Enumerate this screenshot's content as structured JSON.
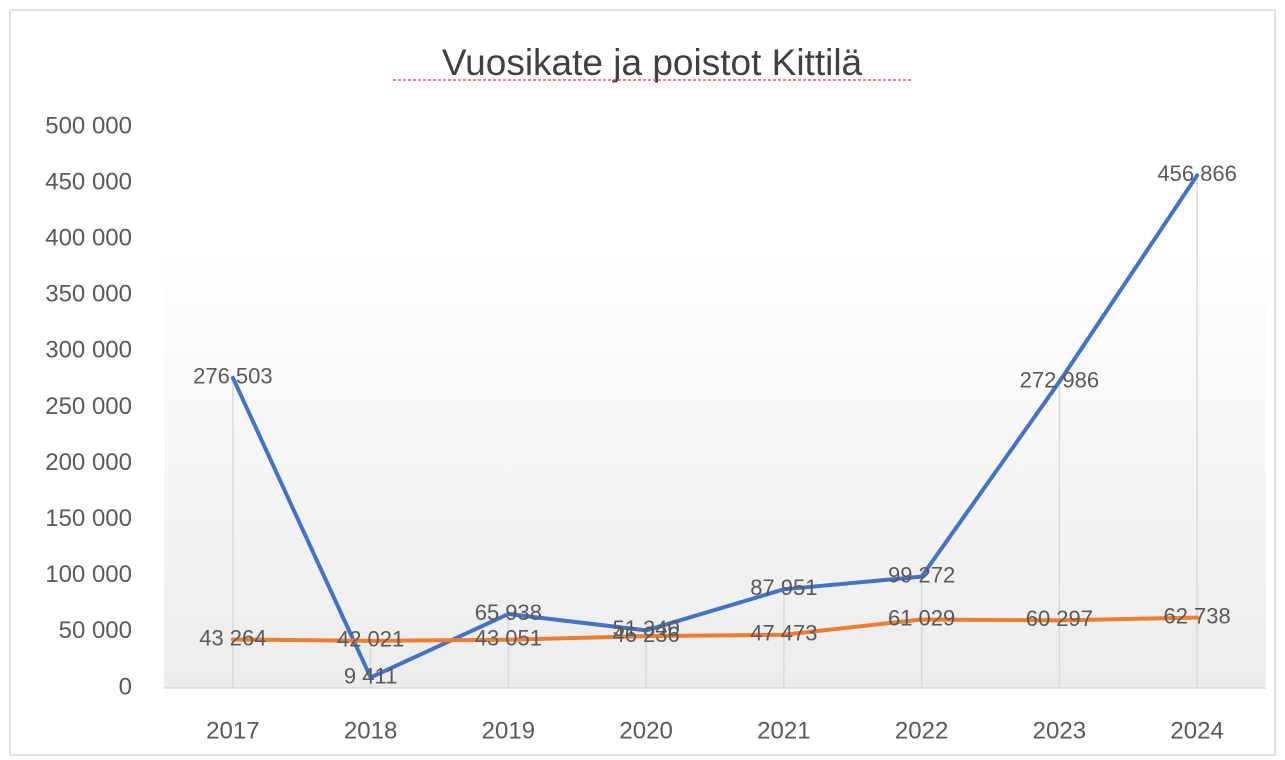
{
  "chart_data": {
    "type": "line",
    "title": "Vuosikate ja poistot Kittilä",
    "categories": [
      "2017",
      "2018",
      "2019",
      "2020",
      "2021",
      "2022",
      "2023",
      "2024"
    ],
    "series": [
      {
        "color": "#4472c4",
        "values": [
          276503,
          9411,
          65938,
          51340,
          87951,
          99272,
          272986,
          456866
        ],
        "value_labels": [
          "276 503",
          "9 411",
          "65 938",
          "51 340",
          "87 951",
          "99 272",
          "272 986",
          "456 866"
        ]
      },
      {
        "color": "#ed7d31",
        "values": [
          43264,
          42021,
          43051,
          46236,
          47473,
          61029,
          60297,
          62738
        ],
        "value_labels": [
          "43 264",
          "42 021",
          "43 051",
          "46 236",
          "47 473",
          "61 029",
          "60 297",
          "62 738"
        ]
      }
    ],
    "ylim": [
      0,
      500000
    ],
    "yticks": [
      {
        "value": 0,
        "label": "0"
      },
      {
        "value": 50000,
        "label": "50 000"
      },
      {
        "value": 100000,
        "label": "100 000"
      },
      {
        "value": 150000,
        "label": "150 000"
      },
      {
        "value": 200000,
        "label": "200 000"
      },
      {
        "value": 250000,
        "label": "250 000"
      },
      {
        "value": 300000,
        "label": "300 000"
      },
      {
        "value": 350000,
        "label": "350 000"
      },
      {
        "value": 400000,
        "label": "400 000"
      },
      {
        "value": 450000,
        "label": "450 000"
      },
      {
        "value": 500000,
        "label": "500 000"
      }
    ]
  }
}
